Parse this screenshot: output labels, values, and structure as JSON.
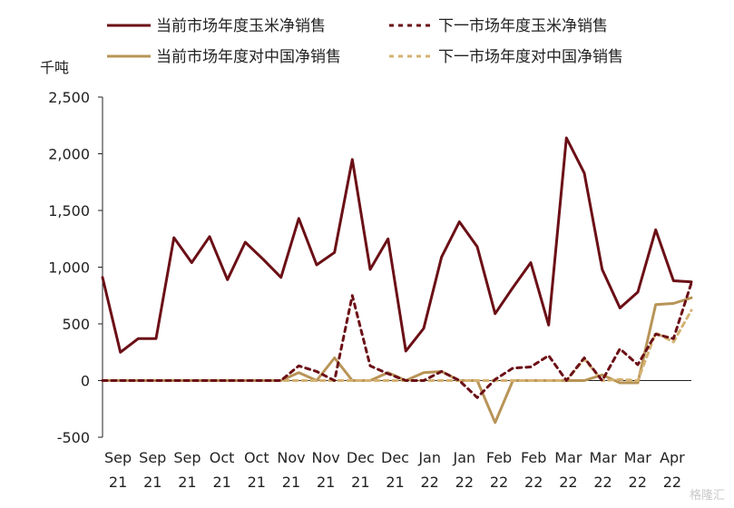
{
  "chart_data": {
    "type": "line",
    "ylabel": "千吨",
    "ylim": [
      -500,
      2500
    ],
    "yticks": [
      "2,500",
      "2,000",
      "1,500",
      "1,000",
      "500",
      "0",
      "-500"
    ],
    "ytick_values": [
      2500,
      2000,
      1500,
      1000,
      500,
      0,
      -500
    ],
    "x_tick_labels": [
      {
        "month": "Sep",
        "year": "21"
      },
      {
        "month": "Sep",
        "year": "21"
      },
      {
        "month": "Sep",
        "year": "21"
      },
      {
        "month": "Oct",
        "year": "21"
      },
      {
        "month": "Oct",
        "year": "21"
      },
      {
        "month": "Nov",
        "year": "21"
      },
      {
        "month": "Nov",
        "year": "21"
      },
      {
        "month": "Dec",
        "year": "21"
      },
      {
        "month": "Dec",
        "year": "21"
      },
      {
        "month": "Jan",
        "year": "22"
      },
      {
        "month": "Jan",
        "year": "22"
      },
      {
        "month": "Feb",
        "year": "22"
      },
      {
        "month": "Feb",
        "year": "22"
      },
      {
        "month": "Mar",
        "year": "22"
      },
      {
        "month": "Mar",
        "year": "22"
      },
      {
        "month": "Mar",
        "year": "22"
      },
      {
        "month": "Apr",
        "year": "22"
      }
    ],
    "legend_placement": "top",
    "series": [
      {
        "name": "当前市场年度玉米净销售",
        "color": "#6b0f16",
        "style": "solid",
        "values": [
          910,
          250,
          370,
          370,
          1260,
          1040,
          1270,
          890,
          1220,
          1070,
          910,
          1430,
          1020,
          1130,
          1950,
          980,
          1250,
          260,
          460,
          1090,
          1400,
          1180,
          590,
          820,
          1040,
          490,
          2140,
          1830,
          980,
          640,
          780,
          1330,
          880,
          870
        ]
      },
      {
        "name": "下一市场年度玉米净销售",
        "color": "#6b0f16",
        "style": "dashed",
        "values": [
          0,
          0,
          0,
          0,
          0,
          0,
          0,
          0,
          0,
          0,
          0,
          130,
          80,
          0,
          750,
          130,
          60,
          0,
          0,
          80,
          0,
          -150,
          10,
          110,
          120,
          220,
          0,
          200,
          0,
          280,
          140,
          410,
          370,
          860
        ]
      },
      {
        "name": "当前市场年度对中国净销售",
        "color": "#b89457",
        "style": "solid",
        "values": [
          0,
          0,
          0,
          0,
          0,
          0,
          0,
          0,
          0,
          0,
          0,
          70,
          0,
          200,
          0,
          0,
          70,
          0,
          70,
          80,
          0,
          0,
          -370,
          0,
          0,
          0,
          0,
          0,
          50,
          -20,
          -20,
          670,
          680,
          730
        ]
      },
      {
        "name": "下一市场年度对中国净销售",
        "color": "#d4b272",
        "style": "dashed",
        "values": [
          0,
          0,
          0,
          0,
          0,
          0,
          0,
          0,
          0,
          0,
          0,
          0,
          0,
          0,
          0,
          0,
          0,
          0,
          0,
          0,
          0,
          0,
          0,
          0,
          0,
          0,
          0,
          190,
          0,
          10,
          0,
          420,
          340,
          620
        ]
      }
    ]
  },
  "watermark": "格隆汇"
}
